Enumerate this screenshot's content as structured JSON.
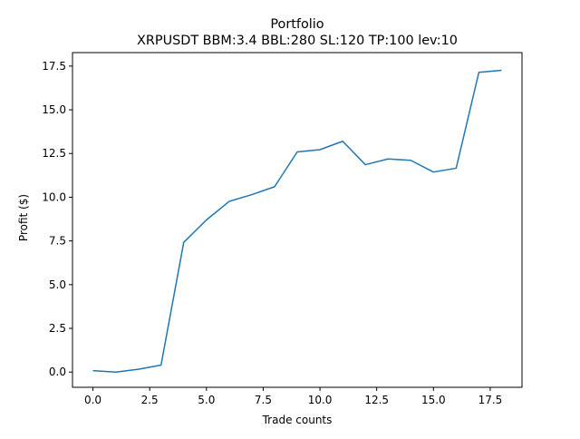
{
  "chart_data": {
    "type": "line",
    "title": "Portfolio",
    "subtitle": "XRPUSDT BBM:3.4 BBL:280 SL:120 TP:100 lev:10",
    "xlabel": "Trade counts",
    "ylabel": "Profit ($)",
    "xlim": [
      -0.9,
      18.9
    ],
    "ylim": [
      -0.87,
      18.27
    ],
    "x_ticks": [
      0.0,
      2.5,
      5.0,
      7.5,
      10.0,
      12.5,
      15.0,
      17.5
    ],
    "x_tick_labels": [
      "0.0",
      "2.5",
      "5.0",
      "7.5",
      "10.0",
      "12.5",
      "15.0",
      "17.5"
    ],
    "y_ticks": [
      0.0,
      2.5,
      5.0,
      7.5,
      10.0,
      12.5,
      15.0,
      17.5
    ],
    "y_tick_labels": [
      "0.0",
      "2.5",
      "5.0",
      "7.5",
      "10.0",
      "12.5",
      "15.0",
      "17.5"
    ],
    "grid": false,
    "legend": "none",
    "x": [
      0,
      1,
      2,
      3,
      4,
      5,
      6,
      7,
      8,
      9,
      10,
      11,
      12,
      13,
      14,
      15,
      16,
      17,
      18
    ],
    "series": [
      {
        "values": [
          0.08,
          0.0,
          0.16,
          0.4,
          7.42,
          8.7,
          9.76,
          10.15,
          10.6,
          12.59,
          12.72,
          13.2,
          11.86,
          12.19,
          12.11,
          11.44,
          11.66,
          17.14,
          17.26
        ],
        "color": "#1f77b4"
      }
    ]
  }
}
